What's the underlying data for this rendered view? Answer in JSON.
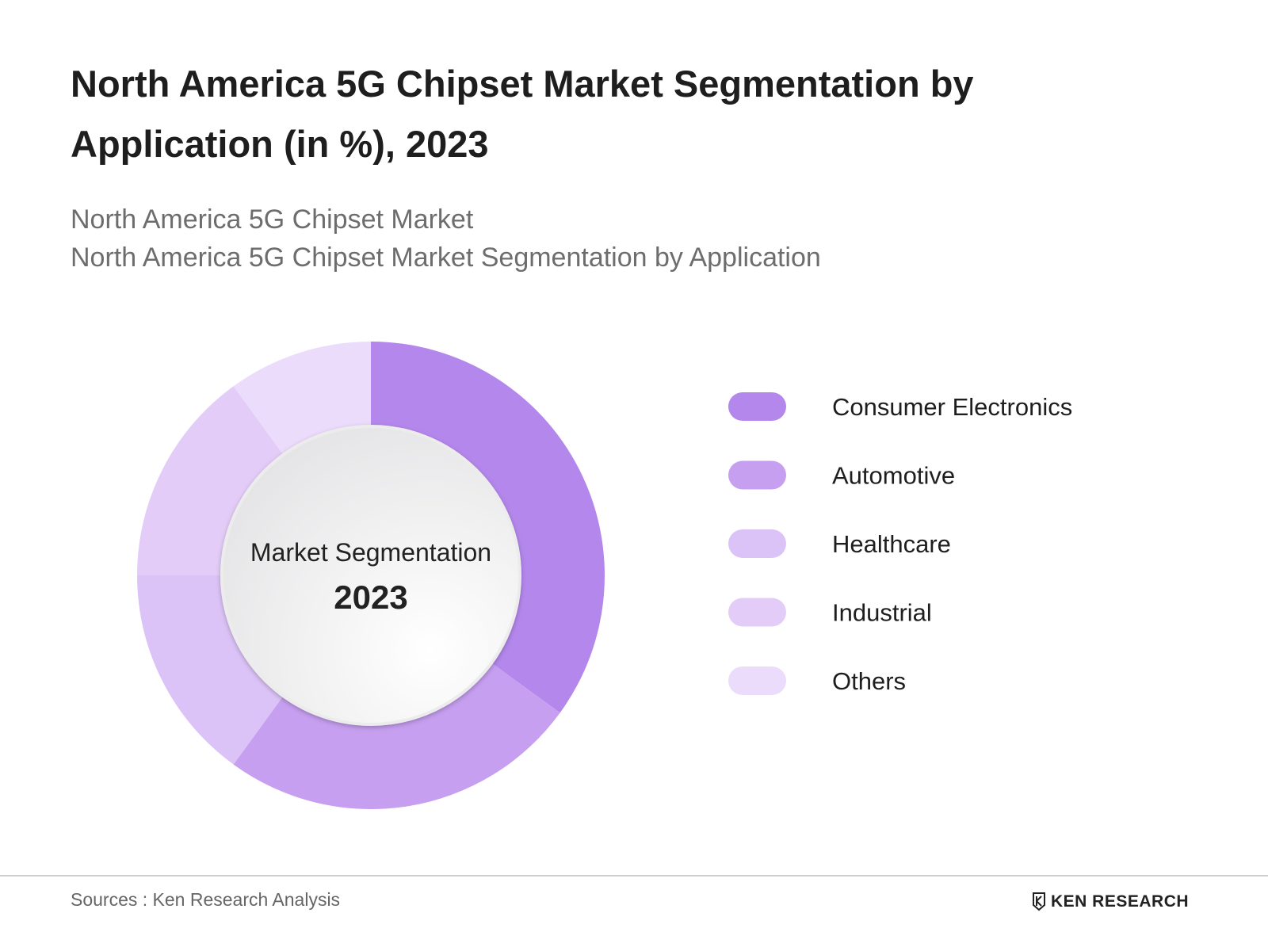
{
  "chart_data": {
    "type": "pie",
    "title": "North America 5G Chipset Market Segmentation by Application (in %), 2023",
    "subtitles": [
      "North America 5G Chipset Market",
      "North America 5G Chipset Market Segmentation by Application"
    ],
    "center_label": "Market Segmentation",
    "center_value": "2023",
    "categories": [
      "Consumer Electronics",
      "Automotive",
      "Healthcare",
      "Industrial",
      "Others"
    ],
    "values": [
      35,
      25,
      15,
      15,
      10
    ],
    "colors": [
      "#b487ec",
      "#c69ff0",
      "#dcc3f7",
      "#e3cdf8",
      "#ebdcfb"
    ],
    "legend": "right"
  },
  "footer": {
    "source": "Sources : Ken Research Analysis",
    "logo": "KEN RESEARCH"
  }
}
